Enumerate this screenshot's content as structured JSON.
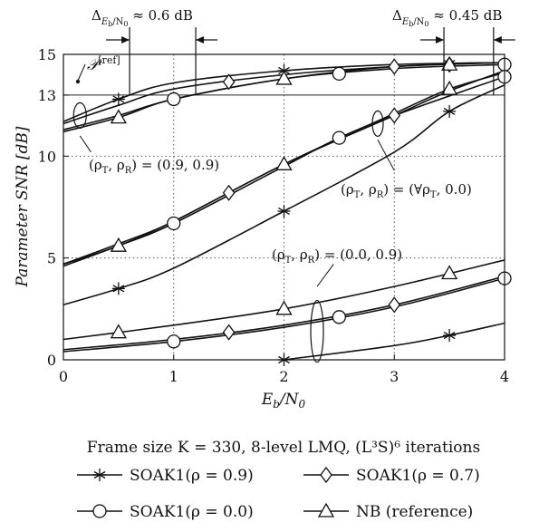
{
  "caption": "Frame size K = 330, 8-level LMQ, (L³S)⁶ iterations",
  "chart_data": {
    "type": "line",
    "title": "",
    "xlabel": "Eb/N0",
    "ylabel": "Parameter SNR [dB]",
    "xlim": [
      0,
      4
    ],
    "ylim": [
      0,
      15
    ],
    "x_ticks": [
      "0",
      "1",
      "2",
      "3",
      "4"
    ],
    "y_ticks": [
      "0",
      "5",
      "10",
      "13",
      "15"
    ],
    "grid": "dotted",
    "legend_position": "below",
    "reference_level": 13,
    "reference_label": "P[ref]",
    "top_annotations": [
      {
        "text": "ΔEb/N0 ≈ 0.6 dB",
        "x_from": 0.6,
        "x_to": 1.2
      },
      {
        "text": "ΔEb/N0 ≈ 0.45 dB",
        "x_from": 3.45,
        "x_to": 3.9
      }
    ],
    "group_labels": [
      {
        "text": "(ρT, ρR) = (0.9, 0.9)"
      },
      {
        "text": "(ρT, ρR) = (∀ρT, 0.0)"
      },
      {
        "text": "(ρT, ρR) = (0.0, 0.9)"
      }
    ],
    "legend": [
      {
        "label": "SOAK1(ρ = 0.9)",
        "marker": "asterisk"
      },
      {
        "label": "SOAK1(ρ = 0.7)",
        "marker": "diamond"
      },
      {
        "label": "SOAK1(ρ = 0.0)",
        "marker": "circle"
      },
      {
        "label": "NB (reference)",
        "marker": "triangle"
      }
    ],
    "series": [
      {
        "group": "(0.9, 0.9)",
        "marker": "asterisk",
        "x": [
          0,
          0.5,
          1,
          2,
          3,
          4
        ],
        "y": [
          11.7,
          12.8,
          13.6,
          14.2,
          14.5,
          14.6
        ],
        "markers_at": [
          0.5,
          2,
          3.5
        ]
      },
      {
        "group": "(0.9, 0.9)",
        "marker": "diamond",
        "x": [
          0,
          0.5,
          1,
          2,
          3,
          4
        ],
        "y": [
          11.6,
          12.5,
          13.3,
          14.0,
          14.4,
          14.6
        ],
        "markers_at": [
          1.5,
          3,
          3.5
        ]
      },
      {
        "group": "(0.9, 0.9)",
        "marker": "circle",
        "x": [
          0,
          0.5,
          1,
          2,
          3,
          4
        ],
        "y": [
          11.3,
          12.0,
          12.8,
          13.8,
          14.3,
          14.5
        ],
        "markers_at": [
          1,
          2.5,
          4
        ]
      },
      {
        "group": "(0.9, 0.9)",
        "marker": "triangle",
        "x": [
          0,
          0.5,
          1,
          2,
          3,
          4
        ],
        "y": [
          11.2,
          11.9,
          12.8,
          13.8,
          14.4,
          14.6
        ],
        "markers_at": [
          0.5,
          2,
          3.5
        ]
      },
      {
        "group": "(∀ρT, 0.0)",
        "marker": "asterisk",
        "x": [
          0,
          0.5,
          1,
          2,
          3,
          3.5,
          4
        ],
        "y": [
          2.7,
          3.5,
          4.5,
          7.3,
          10.2,
          12.2,
          13.5
        ],
        "markers_at": [
          0.5,
          2,
          3.5
        ]
      },
      {
        "group": "(∀ρT, 0.0)",
        "marker": "diamond",
        "x": [
          0,
          0.5,
          1,
          2,
          3,
          3.5,
          4
        ],
        "y": [
          4.7,
          5.7,
          6.8,
          9.6,
          12.0,
          13.2,
          14.2
        ],
        "markers_at": [
          1.5,
          3
        ]
      },
      {
        "group": "(∀ρT, 0.0)",
        "marker": "circle",
        "x": [
          0,
          0.5,
          1,
          2,
          2.5,
          3,
          4
        ],
        "y": [
          4.6,
          5.6,
          6.7,
          9.5,
          10.9,
          12.0,
          13.9
        ],
        "markers_at": [
          1,
          2.5,
          4
        ]
      },
      {
        "group": "(∀ρT, 0.0)",
        "marker": "triangle",
        "x": [
          0,
          0.5,
          1,
          2,
          3,
          3.5,
          4
        ],
        "y": [
          4.7,
          5.6,
          6.8,
          9.6,
          12.1,
          13.3,
          14.1
        ],
        "markers_at": [
          0.5,
          2,
          3.5
        ]
      },
      {
        "group": "(0.0, 0.9)",
        "marker": "asterisk",
        "x": [
          2,
          3,
          3.5,
          4
        ],
        "y": [
          0,
          0.7,
          1.2,
          1.8
        ],
        "markers_at": [
          2,
          3.5
        ]
      },
      {
        "group": "(0.0, 0.9)",
        "marker": "diamond",
        "x": [
          0,
          1,
          2,
          3,
          4
        ],
        "y": [
          0.5,
          1.0,
          1.7,
          2.7,
          4.1
        ],
        "markers_at": [
          1.5,
          3
        ]
      },
      {
        "group": "(0.0, 0.9)",
        "marker": "circle",
        "x": [
          0,
          1,
          2,
          3,
          4
        ],
        "y": [
          0.4,
          0.9,
          1.6,
          2.6,
          4.0
        ],
        "markers_at": [
          1,
          2.5,
          4
        ]
      },
      {
        "group": "(0.0, 0.9)",
        "marker": "triangle",
        "x": [
          0,
          1,
          2,
          3,
          4
        ],
        "y": [
          1.0,
          1.7,
          2.5,
          3.6,
          4.9
        ],
        "markers_at": [
          0.5,
          2,
          3.5
        ]
      }
    ]
  }
}
